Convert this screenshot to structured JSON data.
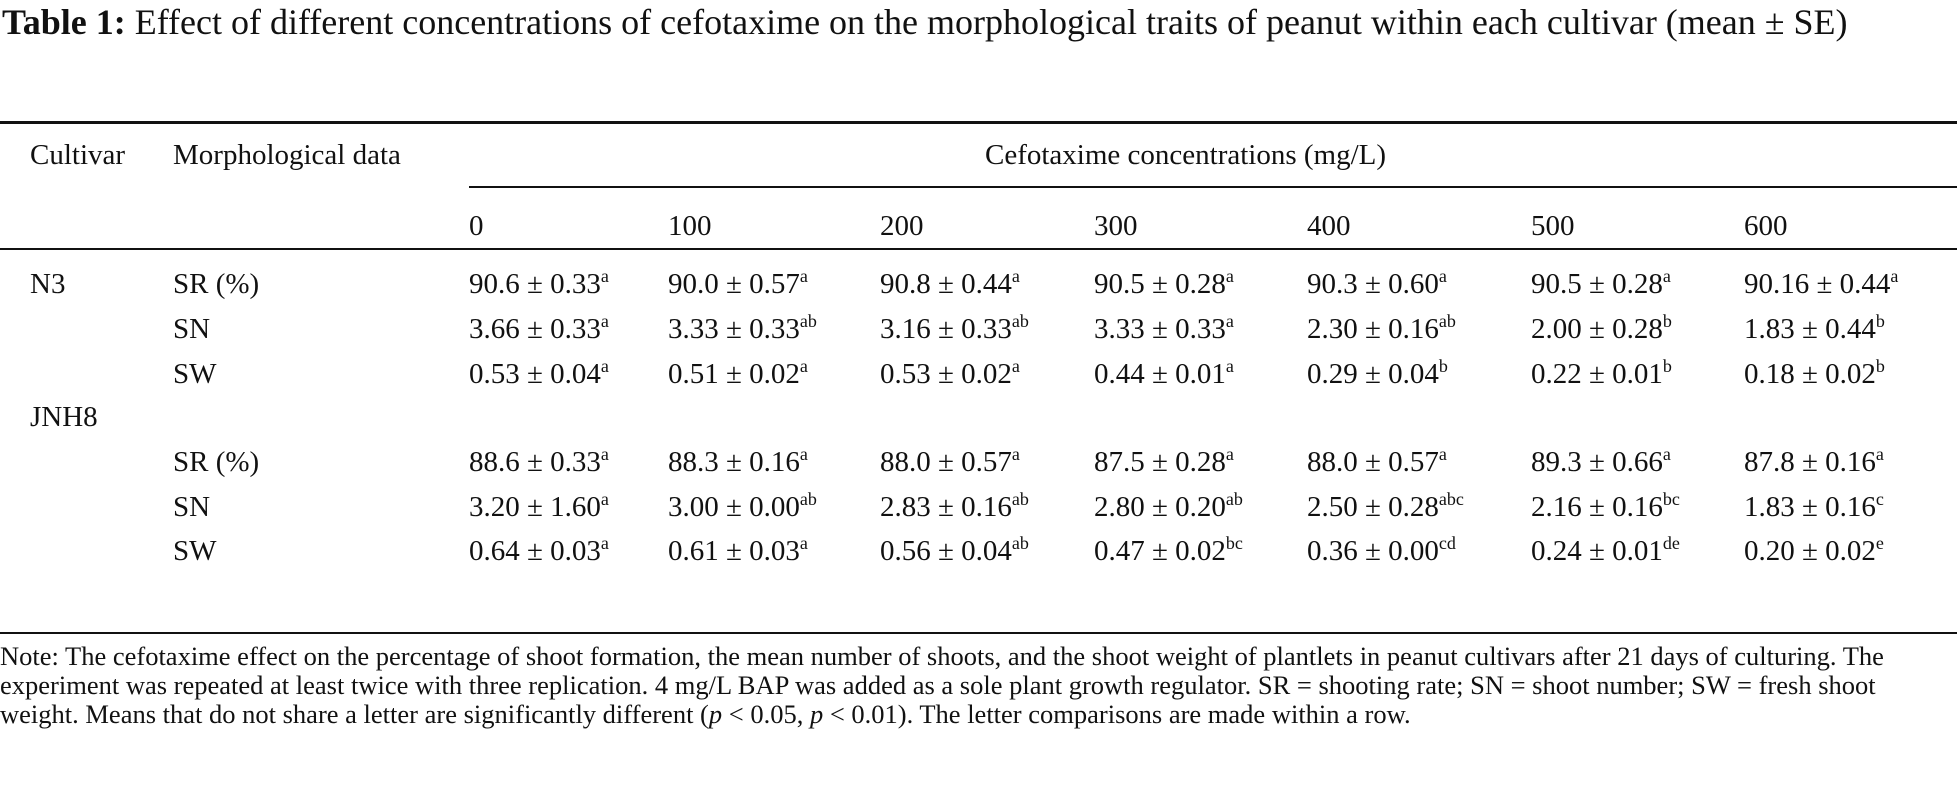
{
  "caption": {
    "label": "Table 1:",
    "text": "Effect of different concentrations of cefotaxime on the morphological traits of peanut within each cultivar (mean ± SE)"
  },
  "headers": {
    "cultivar": "Cultivar",
    "morphological": "Morphological data",
    "concentrations": "Cefotaxime concentrations (mg/L)",
    "levels": [
      "0",
      "100",
      "200",
      "300",
      "400",
      "500",
      "600"
    ]
  },
  "groups": [
    {
      "cultivar": "N3",
      "rows": [
        {
          "trait": "SR (%)",
          "cells": [
            {
              "value": "90.6 ± 0.33",
              "letter": "a"
            },
            {
              "value": "90.0 ± 0.57",
              "letter": "a"
            },
            {
              "value": "90.8 ± 0.44",
              "letter": "a"
            },
            {
              "value": "90.5 ± 0.28",
              "letter": "a"
            },
            {
              "value": "90.3 ± 0.60",
              "letter": "a"
            },
            {
              "value": "90.5 ± 0.28",
              "letter": "a"
            },
            {
              "value": "90.16 ± 0.44",
              "letter": "a"
            }
          ]
        },
        {
          "trait": "SN",
          "cells": [
            {
              "value": "3.66 ± 0.33",
              "letter": "a"
            },
            {
              "value": "3.33 ± 0.33",
              "letter": "ab"
            },
            {
              "value": "3.16 ± 0.33",
              "letter": "ab"
            },
            {
              "value": "3.33 ± 0.33",
              "letter": "a"
            },
            {
              "value": "2.30 ± 0.16",
              "letter": "ab"
            },
            {
              "value": "2.00 ± 0.28",
              "letter": "b"
            },
            {
              "value": "1.83 ± 0.44",
              "letter": "b"
            }
          ]
        },
        {
          "trait": "SW",
          "cells": [
            {
              "value": "0.53 ± 0.04",
              "letter": "a"
            },
            {
              "value": "0.51 ± 0.02",
              "letter": "a"
            },
            {
              "value": "0.53 ± 0.02",
              "letter": "a"
            },
            {
              "value": "0.44 ± 0.01",
              "letter": "a"
            },
            {
              "value": "0.29 ± 0.04",
              "letter": "b"
            },
            {
              "value": "0.22 ± 0.01",
              "letter": "b"
            },
            {
              "value": "0.18 ± 0.02",
              "letter": "b"
            }
          ]
        }
      ]
    },
    {
      "cultivar": "JNH8",
      "rows": [
        {
          "trait": "SR (%)",
          "cells": [
            {
              "value": "88.6 ± 0.33",
              "letter": "a"
            },
            {
              "value": "88.3 ± 0.16",
              "letter": "a"
            },
            {
              "value": "88.0 ± 0.57",
              "letter": "a"
            },
            {
              "value": "87.5 ± 0.28",
              "letter": "a"
            },
            {
              "value": "88.0 ± 0.57",
              "letter": "a"
            },
            {
              "value": "89.3 ± 0.66",
              "letter": "a"
            },
            {
              "value": "87.8 ± 0.16",
              "letter": "a"
            }
          ]
        },
        {
          "trait": "SN",
          "cells": [
            {
              "value": "3.20 ± 1.60",
              "letter": "a"
            },
            {
              "value": "3.00 ± 0.00",
              "letter": "ab"
            },
            {
              "value": "2.83 ± 0.16",
              "letter": "ab"
            },
            {
              "value": "2.80 ± 0.20",
              "letter": "ab"
            },
            {
              "value": "2.50 ± 0.28",
              "letter": "abc"
            },
            {
              "value": "2.16 ± 0.16",
              "letter": "bc"
            },
            {
              "value": "1.83 ± 0.16",
              "letter": "c"
            }
          ]
        },
        {
          "trait": "SW",
          "cells": [
            {
              "value": "0.64 ± 0.03",
              "letter": "a"
            },
            {
              "value": "0.61 ± 0.03",
              "letter": "a"
            },
            {
              "value": "0.56 ± 0.04",
              "letter": "ab"
            },
            {
              "value": "0.47 ± 0.02",
              "letter": "bc"
            },
            {
              "value": "0.36 ± 0.00",
              "letter": "cd"
            },
            {
              "value": "0.24 ± 0.01",
              "letter": "de"
            },
            {
              "value": "0.20 ± 0.02",
              "letter": "e"
            }
          ]
        }
      ]
    }
  ],
  "note": {
    "part1": "Note: The cefotaxime effect on the percentage of shoot formation, the mean number of shoots, and the shoot weight of plantlets in peanut cultivars after 21 days of culturing. The experiment was repeated at least twice with three replication. 4 mg/L BAP was added as a sole plant growth regulator. SR = shooting rate; SN = shoot number; SW = fresh shoot weight. Means that do not share a letter are significantly different (",
    "p_symbol": "p",
    "threshold1": " < 0.05, ",
    "threshold2": " < 0.01). The letter comparisons are made within a row."
  }
}
